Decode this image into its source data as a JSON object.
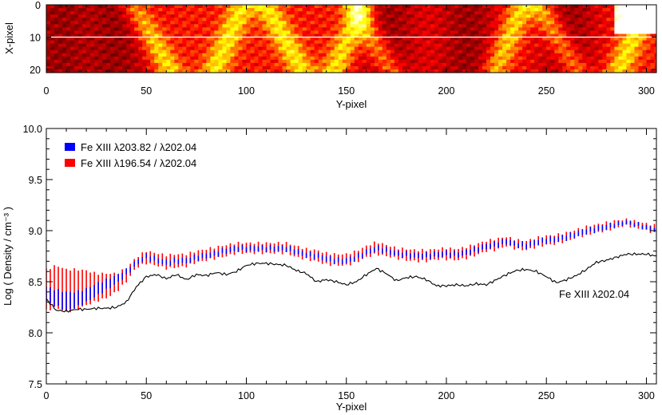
{
  "chart_data": [
    {
      "type": "heatmap",
      "xlabel": "Y-pixel",
      "ylabel": "X-pixel",
      "xlim": [
        0,
        305
      ],
      "ylim": [
        0,
        21
      ],
      "x_ticks": [
        0,
        50,
        100,
        150,
        200,
        250,
        300
      ],
      "y_ticks": [
        0,
        10,
        20
      ],
      "colormap": "hot",
      "reference_line": {
        "y": 10,
        "color": "#ffffff"
      },
      "bright_bands_y": [
        52,
        90,
        118,
        150,
        162,
        230,
        255,
        292
      ],
      "dark_regions_y": [
        5,
        35,
        170,
        210,
        260
      ]
    },
    {
      "type": "line",
      "xlabel": "Y-pixel",
      "ylabel": "Log ( Density / cm⁻³ )",
      "xlim": [
        0,
        305
      ],
      "ylim": [
        7.5,
        10.0
      ],
      "x_ticks": [
        0,
        50,
        100,
        150,
        200,
        250,
        300
      ],
      "y_ticks": [
        "7.5",
        "8.0",
        "8.5",
        "9.0",
        "9.5",
        "10.0"
      ],
      "legend_position": "top-left",
      "series": [
        {
          "name": "Fe XIII λ203.82 / λ202.04",
          "color": "#0000ff",
          "style": "error-bars",
          "x": [
            0,
            5,
            10,
            15,
            20,
            25,
            30,
            35,
            40,
            45,
            50,
            55,
            60,
            65,
            70,
            75,
            80,
            85,
            90,
            95,
            100,
            105,
            110,
            115,
            120,
            125,
            130,
            135,
            140,
            145,
            150,
            155,
            160,
            165,
            170,
            175,
            180,
            185,
            190,
            195,
            200,
            205,
            210,
            215,
            220,
            225,
            230,
            235,
            240,
            245,
            250,
            255,
            260,
            265,
            270,
            275,
            280,
            285,
            290,
            295,
            300,
            305
          ],
          "low": [
            8.3,
            8.26,
            8.22,
            8.25,
            8.3,
            8.36,
            8.42,
            8.48,
            8.56,
            8.66,
            8.72,
            8.69,
            8.66,
            8.68,
            8.68,
            8.71,
            8.73,
            8.75,
            8.78,
            8.8,
            8.8,
            8.8,
            8.8,
            8.8,
            8.8,
            8.77,
            8.74,
            8.73,
            8.7,
            8.68,
            8.68,
            8.71,
            8.76,
            8.8,
            8.78,
            8.75,
            8.74,
            8.73,
            8.73,
            8.74,
            8.75,
            8.74,
            8.76,
            8.79,
            8.82,
            8.84,
            8.87,
            8.84,
            8.83,
            8.86,
            8.88,
            8.89,
            8.91,
            8.94,
            8.97,
            8.99,
            9.01,
            9.04,
            9.06,
            9.04,
            9.01,
            8.99
          ],
          "high": [
            8.45,
            8.42,
            8.4,
            8.4,
            8.43,
            8.48,
            8.52,
            8.56,
            8.62,
            8.71,
            8.77,
            8.74,
            8.71,
            8.73,
            8.73,
            8.76,
            8.78,
            8.8,
            8.83,
            8.85,
            8.85,
            8.85,
            8.85,
            8.85,
            8.85,
            8.82,
            8.79,
            8.78,
            8.75,
            8.73,
            8.73,
            8.76,
            8.81,
            8.85,
            8.83,
            8.8,
            8.79,
            8.78,
            8.78,
            8.79,
            8.8,
            8.79,
            8.81,
            8.84,
            8.87,
            8.89,
            8.92,
            8.89,
            8.88,
            8.91,
            8.93,
            8.94,
            8.96,
            8.99,
            9.02,
            9.04,
            9.06,
            9.08,
            9.1,
            9.08,
            9.05,
            9.03
          ]
        },
        {
          "name": "Fe XIII λ196.54 / λ202.04",
          "color": "#ff0000",
          "style": "error-bars",
          "x": [
            0,
            5,
            10,
            15,
            20,
            25,
            30,
            35,
            40,
            45,
            50,
            55,
            60,
            65,
            70,
            75,
            80,
            85,
            90,
            95,
            100,
            105,
            110,
            115,
            120,
            125,
            130,
            135,
            140,
            145,
            150,
            155,
            160,
            165,
            170,
            175,
            180,
            185,
            190,
            195,
            200,
            205,
            210,
            215,
            220,
            225,
            230,
            235,
            240,
            245,
            250,
            255,
            260,
            265,
            270,
            275,
            280,
            285,
            290,
            295,
            300,
            305
          ],
          "low": [
            8.22,
            8.25,
            8.2,
            8.23,
            8.27,
            8.31,
            8.34,
            8.4,
            8.5,
            8.64,
            8.68,
            8.66,
            8.63,
            8.64,
            8.65,
            8.69,
            8.71,
            8.73,
            8.75,
            8.78,
            8.78,
            8.78,
            8.78,
            8.78,
            8.78,
            8.74,
            8.72,
            8.7,
            8.67,
            8.66,
            8.66,
            8.69,
            8.74,
            8.77,
            8.75,
            8.73,
            8.71,
            8.7,
            8.7,
            8.72,
            8.72,
            8.71,
            8.73,
            8.76,
            8.8,
            8.81,
            8.85,
            8.82,
            8.81,
            8.84,
            8.86,
            8.87,
            8.9,
            8.93,
            8.96,
            8.98,
            9.0,
            9.03,
            9.05,
            9.03,
            9.0,
            8.97
          ],
          "high": [
            8.62,
            8.66,
            8.62,
            8.62,
            8.61,
            8.58,
            8.58,
            8.58,
            8.63,
            8.74,
            8.8,
            8.78,
            8.76,
            8.77,
            8.77,
            8.8,
            8.82,
            8.84,
            8.86,
            8.88,
            8.88,
            8.88,
            8.88,
            8.88,
            8.88,
            8.85,
            8.82,
            8.81,
            8.78,
            8.77,
            8.77,
            8.8,
            8.85,
            8.89,
            8.86,
            8.83,
            8.82,
            8.81,
            8.81,
            8.82,
            8.83,
            8.82,
            8.84,
            8.87,
            8.9,
            8.92,
            8.94,
            8.91,
            8.9,
            8.93,
            8.95,
            8.96,
            8.98,
            9.01,
            9.04,
            9.06,
            9.08,
            9.1,
            9.11,
            9.09,
            9.07,
            9.05
          ]
        },
        {
          "name": "Fe XIII λ202.04",
          "color": "#000000",
          "style": "line",
          "label_position": "end-right",
          "x": [
            0,
            5,
            10,
            15,
            20,
            25,
            30,
            35,
            40,
            45,
            50,
            55,
            60,
            65,
            70,
            75,
            80,
            85,
            90,
            95,
            100,
            105,
            110,
            115,
            120,
            125,
            130,
            135,
            140,
            145,
            150,
            155,
            160,
            165,
            170,
            175,
            180,
            185,
            190,
            195,
            200,
            205,
            210,
            215,
            220,
            225,
            230,
            235,
            240,
            245,
            250,
            255,
            260,
            265,
            270,
            275,
            280,
            285,
            290,
            295,
            300,
            305
          ],
          "y": [
            8.33,
            8.22,
            8.21,
            8.23,
            8.23,
            8.24,
            8.24,
            8.25,
            8.3,
            8.45,
            8.55,
            8.57,
            8.53,
            8.57,
            8.52,
            8.57,
            8.56,
            8.59,
            8.57,
            8.6,
            8.66,
            8.68,
            8.68,
            8.67,
            8.66,
            8.61,
            8.58,
            8.5,
            8.52,
            8.5,
            8.47,
            8.5,
            8.57,
            8.63,
            8.58,
            8.51,
            8.54,
            8.55,
            8.52,
            8.46,
            8.46,
            8.47,
            8.46,
            8.48,
            8.47,
            8.52,
            8.57,
            8.61,
            8.62,
            8.6,
            8.55,
            8.49,
            8.52,
            8.56,
            8.62,
            8.69,
            8.71,
            8.74,
            8.77,
            8.77,
            8.77,
            8.75
          ]
        }
      ]
    }
  ]
}
